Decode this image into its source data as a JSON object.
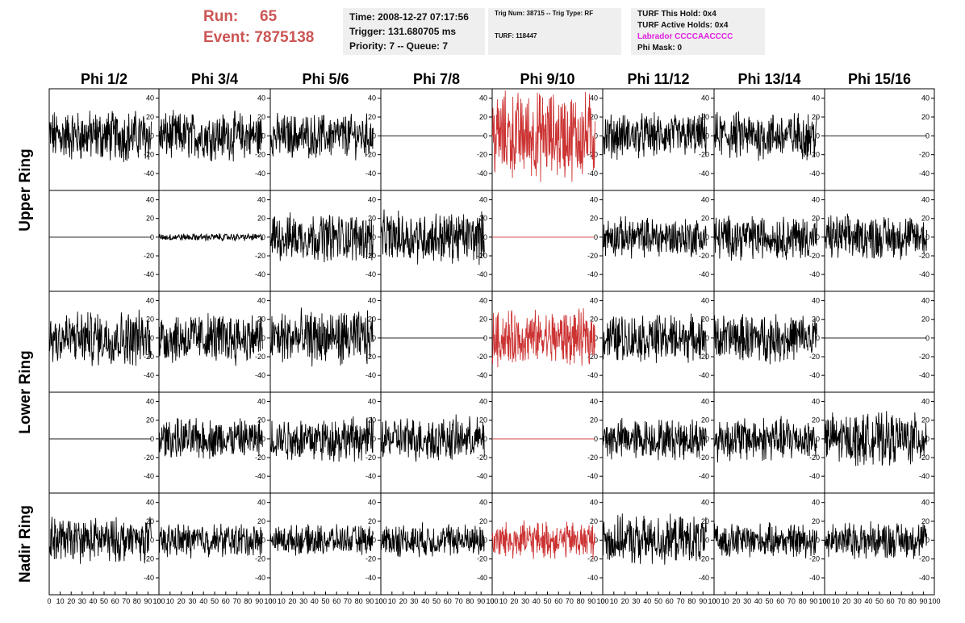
{
  "run": {
    "label": "Run:",
    "value": "65"
  },
  "event": {
    "label": "Event:",
    "value": "7875138"
  },
  "info1": {
    "time": "Time: 2008-12-27 07:17:56",
    "trigger": "Trigger: 131.680705 ms",
    "priority": "Priority: 7 -- Queue: 7"
  },
  "info2": {
    "trig": "Trig Num: 38715 -- Trig Type: RF",
    "turf": "TURF: 118447"
  },
  "info3": {
    "this_hold": "TURF This Hold: 0x4",
    "active_holds": "TURF Active Holds: 0x4",
    "labrador": "Labrador CCCCAACCCC",
    "phi_mask": "Phi Mask: 0"
  },
  "colors": {
    "normal_trace": "#000000",
    "highlight_trace": "#cc3333",
    "accent_text": "#cc5555",
    "labrador_text": "#e020e0",
    "info_bg": "#efefef"
  },
  "chart_data": {
    "type": "line",
    "columns": [
      "Phi 1/2",
      "Phi 3/4",
      "Phi 5/6",
      "Phi 7/8",
      "Phi 9/10",
      "Phi 11/12",
      "Phi 13/14",
      "Phi 15/16"
    ],
    "rows": [
      "Upper Ring",
      "Lower Ring",
      "Nadir Ring"
    ],
    "row_panels": 5,
    "row_label_spans": [
      [
        0,
        2
      ],
      [
        2,
        4
      ],
      [
        4,
        5
      ]
    ],
    "highlight_column": 4,
    "xlim": [
      0,
      100
    ],
    "ylim": [
      -58,
      50
    ],
    "y_ticks": [
      -40,
      -20,
      0,
      20,
      40
    ],
    "x_ticks": [
      0,
      10,
      20,
      30,
      40,
      50,
      60,
      70,
      80,
      90,
      100
    ],
    "x_tick_labels": [
      "0",
      "10",
      "20",
      "30",
      "40",
      "50",
      "60",
      "70",
      "80",
      "90",
      "100"
    ],
    "samples": 260,
    "trace_x_range": [
      0,
      93
    ],
    "amplitudes": [
      [
        14,
        13,
        12,
        0,
        24,
        12,
        13,
        0
      ],
      [
        0,
        2,
        13,
        14,
        0,
        11,
        12,
        12
      ],
      [
        15,
        14,
        15,
        0,
        15,
        13,
        13,
        0
      ],
      [
        0,
        11,
        12,
        12,
        0,
        11,
        12,
        14
      ],
      [
        12,
        9,
        8,
        9,
        10,
        13,
        9,
        10
      ]
    ]
  }
}
